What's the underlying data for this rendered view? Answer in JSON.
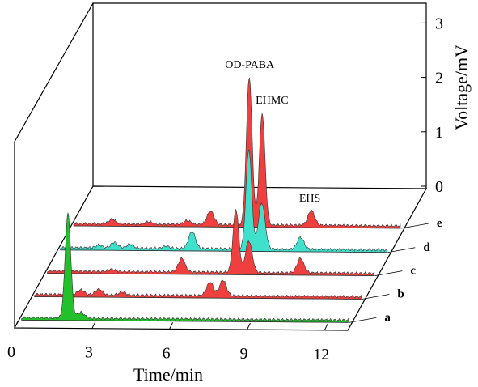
{
  "chart_data": {
    "type": "line",
    "style": "3d-waterfall",
    "title": "",
    "xlabel": "Time/min",
    "ylabel": "Voltage/mV",
    "xlim": [
      0,
      12.9
    ],
    "ylim": [
      0,
      3.2
    ],
    "x_ticks": [
      "0",
      "3",
      "6",
      "9",
      "12"
    ],
    "y_ticks": [
      "0",
      "1",
      "2",
      "3"
    ],
    "series": [
      {
        "name": "a",
        "color": "#22c02a",
        "baseline": 0.05,
        "peaks": [
          {
            "t": 1.9,
            "h": 2.15
          },
          {
            "t": 2.4,
            "h": 0.12
          }
        ]
      },
      {
        "name": "b",
        "color": "#ef3f3f",
        "baseline": 0.05,
        "peaks": [
          {
            "t": 1.9,
            "h": 0.1
          },
          {
            "t": 2.6,
            "h": 0.12
          },
          {
            "t": 3.5,
            "h": 0.06
          },
          {
            "t": 6.9,
            "h": 0.28
          },
          {
            "t": 7.4,
            "h": 0.32
          }
        ]
      },
      {
        "name": "c",
        "color": "#ef3f3f",
        "baseline": 0.05,
        "peaks": [
          {
            "t": 2.6,
            "h": 0.05
          },
          {
            "t": 5.3,
            "h": 0.28
          },
          {
            "t": 7.4,
            "h": 1.3
          },
          {
            "t": 7.9,
            "h": 0.65
          },
          {
            "t": 9.9,
            "h": 0.3
          }
        ]
      },
      {
        "name": "d",
        "color": "#3fe0cc",
        "baseline": 0.05,
        "peaks": [
          {
            "t": 1.6,
            "h": 0.06
          },
          {
            "t": 2.2,
            "h": 0.12
          },
          {
            "t": 2.8,
            "h": 0.08
          },
          {
            "t": 4.2,
            "h": 0.05
          },
          {
            "t": 5.2,
            "h": 0.35
          },
          {
            "t": 7.4,
            "h": 2.05
          },
          {
            "t": 7.9,
            "h": 0.95
          },
          {
            "t": 9.4,
            "h": 0.25
          }
        ]
      },
      {
        "name": "e",
        "color": "#ef3f3f",
        "baseline": 0.05,
        "peaks": [
          {
            "t": 1.6,
            "h": 0.1
          },
          {
            "t": 3.0,
            "h": 0.05
          },
          {
            "t": 4.5,
            "h": 0.08
          },
          {
            "t": 5.4,
            "h": 0.28
          },
          {
            "t": 6.9,
            "h": 3.05
          },
          {
            "t": 7.4,
            "h": 2.3
          },
          {
            "t": 9.3,
            "h": 0.3
          }
        ]
      }
    ],
    "annotations": [
      {
        "text": "OD-PABA",
        "series": "e",
        "t": 6.9
      },
      {
        "text": "EHMC",
        "series": "e",
        "t": 7.4
      },
      {
        "text": "EHS",
        "series": "e",
        "t": 9.3
      }
    ]
  }
}
